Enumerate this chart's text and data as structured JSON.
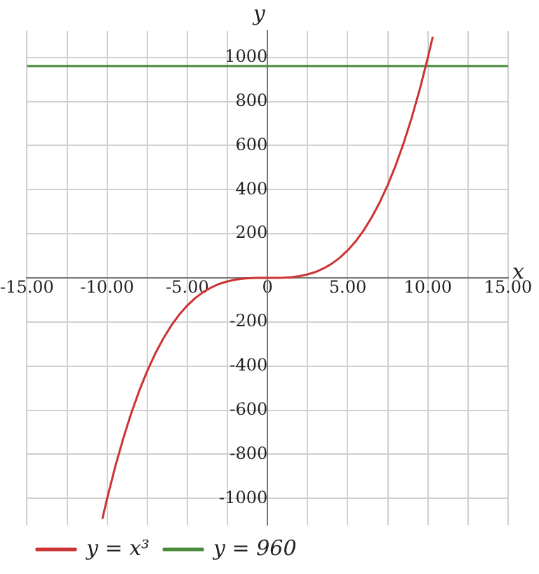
{
  "chart_data": {
    "type": "line",
    "xlabel": "x",
    "ylabel": "y",
    "xlim": [
      -15,
      15
    ],
    "ylim": [
      -1120,
      1120
    ],
    "xticks": [
      {
        "value": -15,
        "label": "-15.00"
      },
      {
        "value": -12.5,
        "label": null
      },
      {
        "value": -10,
        "label": "-10.00"
      },
      {
        "value": -7.5,
        "label": null
      },
      {
        "value": -5,
        "label": "-5.00"
      },
      {
        "value": -2.5,
        "label": null
      },
      0,
      {
        "value": 2.5,
        "label": null
      },
      {
        "value": 5,
        "label": "5.00"
      },
      {
        "value": 7.5,
        "label": null
      },
      {
        "value": 10,
        "label": "10.00"
      },
      {
        "value": 12.5,
        "label": null
      },
      {
        "value": 15,
        "label": "15.00"
      }
    ],
    "yticks": [
      -1000,
      -800,
      -600,
      -400,
      -200,
      {
        "value": 0,
        "label": null
      },
      200,
      400,
      600,
      800,
      1000
    ],
    "grid": true,
    "legend": "bottom left",
    "marker": "none",
    "line_style": "solid",
    "series": [
      {
        "name": "y = x³",
        "color": "#cc3333",
        "x": [
          -10.3,
          -10,
          -9.5,
          -9,
          -8.5,
          -8,
          -7.5,
          -7,
          -6.5,
          -6,
          -5.5,
          -5,
          -4.5,
          -4,
          -3.5,
          -3,
          -2.5,
          -2,
          -1.5,
          -1,
          -0.5,
          0,
          0.5,
          1,
          1.5,
          2,
          2.5,
          3,
          3.5,
          4,
          4.5,
          5,
          5.5,
          6,
          6.5,
          7,
          7.5,
          8,
          8.5,
          9,
          9.5,
          10,
          10.3
        ],
        "values": [
          -1093,
          -1000,
          -857,
          -729,
          -614,
          -512,
          -422,
          -343,
          -275,
          -216,
          -166,
          -125,
          -91,
          -64,
          -43,
          -27,
          -16,
          -8,
          -3,
          -1,
          0,
          0,
          0,
          1,
          3,
          8,
          16,
          27,
          43,
          64,
          91,
          125,
          166,
          216,
          275,
          343,
          422,
          512,
          614,
          729,
          857,
          1000,
          1093
        ]
      },
      {
        "name": "y = 960",
        "color": "#4a8a3a",
        "x": [
          -15,
          15
        ],
        "values": [
          960,
          960
        ]
      }
    ]
  }
}
